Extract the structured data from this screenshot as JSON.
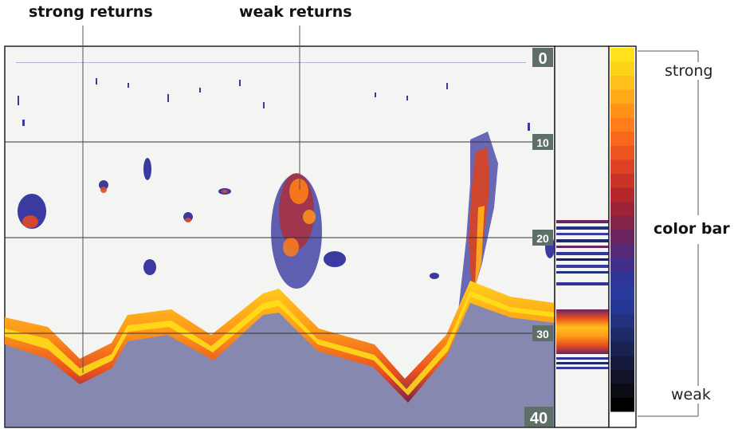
{
  "callouts": {
    "strong_returns": "strong returns",
    "weak_returns": "weak returns"
  },
  "depth_markers": [
    "0",
    "10",
    "20",
    "30",
    "40"
  ],
  "color_bar": {
    "title": "color bar",
    "top_label": "strong",
    "bottom_label": "weak",
    "gradient_colors": [
      "#ffe21a",
      "#ffd21a",
      "#ffbe1a",
      "#ffa81a",
      "#ff931a",
      "#ff7d1a",
      "#f8671c",
      "#ec5420",
      "#dd4224",
      "#c93328",
      "#b4282d",
      "#9c2236",
      "#842248",
      "#6c2460",
      "#552a78",
      "#40308c",
      "#30359a",
      "#2a3a9e",
      "#263896",
      "#22327f",
      "#1e2a68",
      "#1a2254",
      "#161a3e",
      "#111328",
      "#0b0c14",
      "#000000",
      "#ffffff"
    ]
  },
  "colors": {
    "water_background": "#f4f4f2",
    "grid_line": "#333333",
    "depth_marker_bg": "#5d6f66",
    "depth_marker_text": "#ffffff"
  }
}
